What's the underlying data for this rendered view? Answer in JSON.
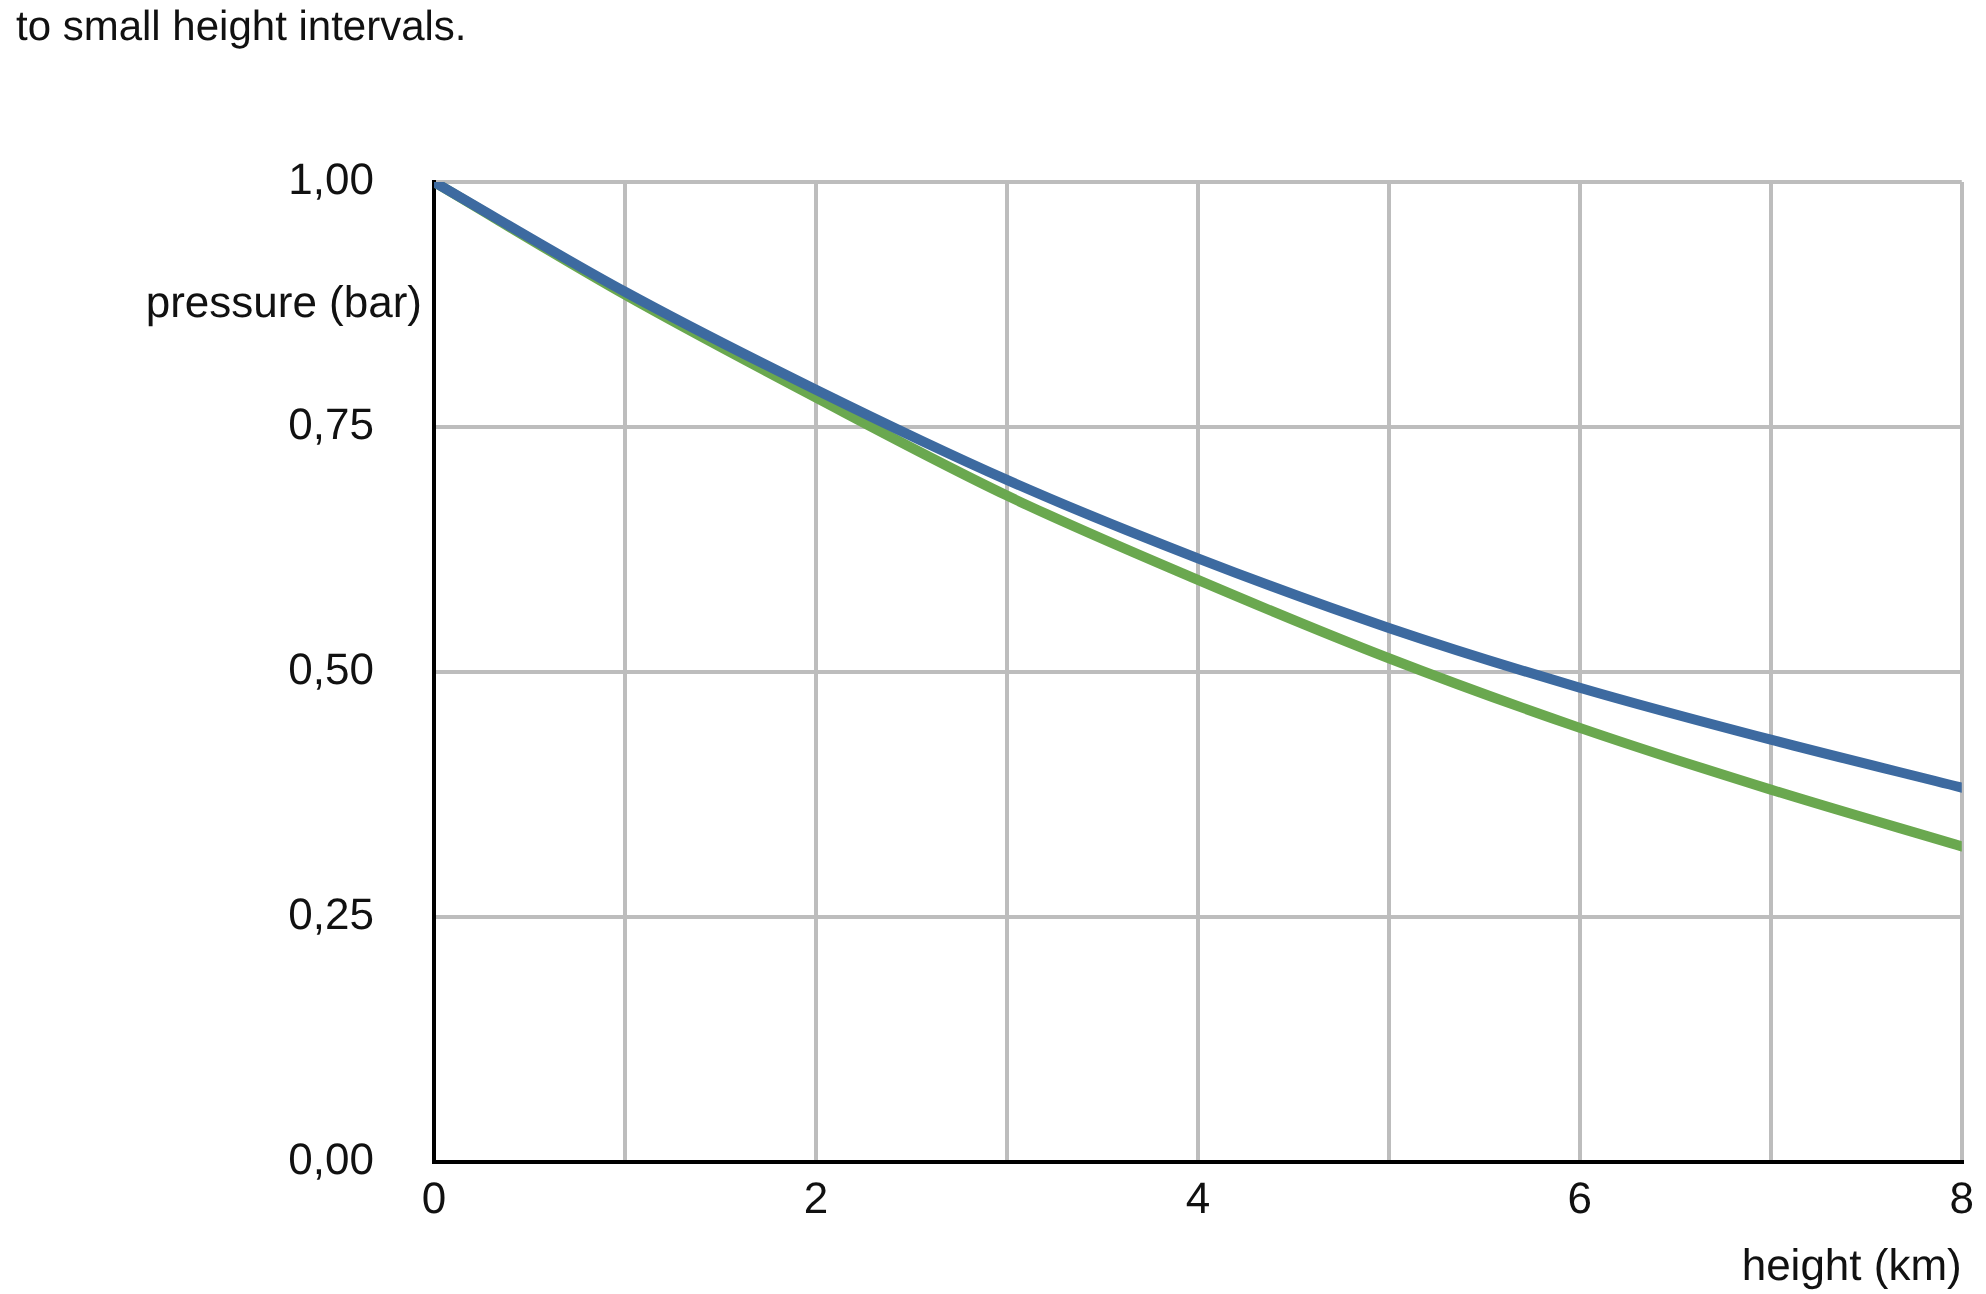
{
  "chart_data": {
    "type": "line",
    "annotations": [
      "to small height intervals."
    ],
    "xlabel": "height (km)",
    "ylabel": "pressure (bar)",
    "series": [
      {
        "color": "#3d6aa0",
        "x": [
          0,
          1,
          2,
          3,
          4,
          5,
          6,
          7,
          8
        ],
        "values": [
          1.0,
          0.888,
          0.788,
          0.696,
          0.616,
          0.545,
          0.484,
          0.431,
          0.382
        ]
      },
      {
        "color": "#6aa84f",
        "x": [
          0,
          1,
          2,
          3,
          4,
          5,
          6,
          7,
          8
        ],
        "values": [
          1.0,
          0.885,
          0.78,
          0.68,
          0.594,
          0.514,
          0.443,
          0.38,
          0.322
        ]
      }
    ],
    "xlim": [
      0,
      8
    ],
    "xticks": [
      0,
      {
        "value": 1,
        "label": null
      },
      2,
      {
        "value": 3,
        "label": null
      },
      4,
      {
        "value": 5,
        "label": null
      },
      6,
      {
        "value": 7,
        "label": null
      },
      8
    ],
    "ylim": [
      0,
      1
    ],
    "yticks": [
      {
        "value": 0,
        "label": "0,00"
      },
      {
        "value": 0.25,
        "label": "0,25"
      },
      {
        "value": 0.5,
        "label": "0,50"
      },
      {
        "value": 0.75,
        "label": "0,75"
      },
      {
        "value": 1,
        "label": "1,00"
      }
    ],
    "grid": true,
    "legend": false,
    "marker": "none",
    "line_style": "solid"
  }
}
